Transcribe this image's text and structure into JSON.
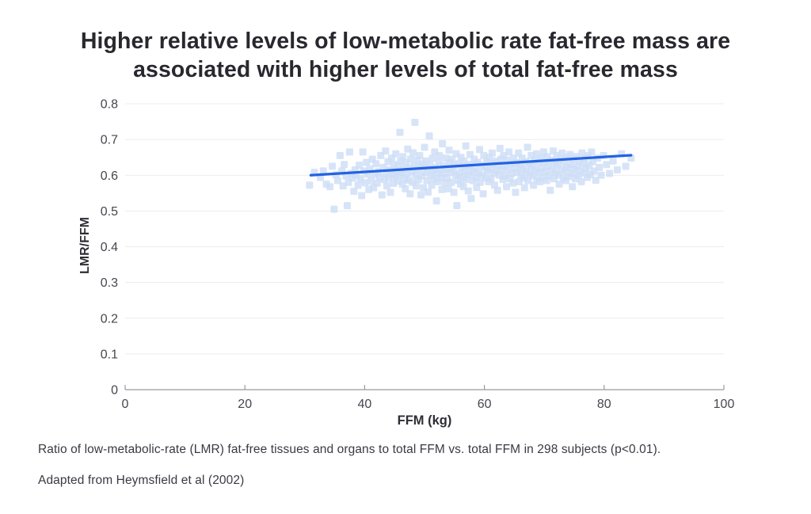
{
  "header": {
    "title_line1": "Higher relative levels of low-metabolic rate fat-free mass are",
    "title_line2": "associated with higher levels of total fat-free mass"
  },
  "footnotes": {
    "line1": "Ratio of low-metabolic-rate (LMR) fat-free tissues and organs to total FFM vs. total FFM in 298 subjects (p<0.01).",
    "line2": "Adapted from Heymsfield et al (2002)"
  },
  "chart_data": {
    "type": "scatter",
    "title": "Higher relative levels of low-metabolic rate fat-free mass are associated with higher levels of total fat-free mass",
    "xlabel": "FFM (kg)",
    "ylabel": "LMR/FFM",
    "xlim": [
      0,
      100
    ],
    "ylim": [
      0,
      0.8
    ],
    "xticks": [
      0,
      20,
      40,
      60,
      80,
      100
    ],
    "xtick_labels": [
      "0",
      "20",
      "40",
      "60",
      "80",
      "100"
    ],
    "yticks": [
      0,
      0.1,
      0.2,
      0.3,
      0.4,
      0.5,
      0.6,
      0.7,
      0.8
    ],
    "ytick_labels": [
      "0",
      "0.1",
      "0.2",
      "0.3",
      "0.4",
      "0.5",
      "0.6",
      "0.7",
      "0.8"
    ],
    "grid": "horizontal-only",
    "legend": "none",
    "subjects": 298,
    "marker": "square",
    "trendline": {
      "x1": 31,
      "y1": 0.6,
      "x2": 84.5,
      "y2": 0.656
    },
    "colors": {
      "point": "#cdddf6",
      "trend": "#2263e3",
      "grid": "#ececec",
      "axis": "#9b9b9b",
      "tick_text": "#47464f"
    },
    "points": [
      [
        30.8,
        0.572
      ],
      [
        31.6,
        0.608
      ],
      [
        32.6,
        0.594
      ],
      [
        33.1,
        0.612
      ],
      [
        33.6,
        0.575
      ],
      [
        34.2,
        0.568
      ],
      [
        34.6,
        0.625
      ],
      [
        34.9,
        0.505
      ],
      [
        35.2,
        0.601
      ],
      [
        35.5,
        0.585
      ],
      [
        35.9,
        0.655
      ],
      [
        36.2,
        0.612
      ],
      [
        36.4,
        0.57
      ],
      [
        36.6,
        0.63
      ],
      [
        36.9,
        0.598
      ],
      [
        37.1,
        0.515
      ],
      [
        37.3,
        0.58
      ],
      [
        37.5,
        0.665
      ],
      [
        37.8,
        0.605
      ],
      [
        38.0,
        0.592
      ],
      [
        38.2,
        0.555
      ],
      [
        38.4,
        0.615
      ],
      [
        38.6,
        0.6
      ],
      [
        38.9,
        0.572
      ],
      [
        39.1,
        0.628
      ],
      [
        39.3,
        0.59
      ],
      [
        39.5,
        0.543
      ],
      [
        39.7,
        0.665
      ],
      [
        39.9,
        0.612
      ],
      [
        40.1,
        0.579
      ],
      [
        40.3,
        0.636
      ],
      [
        40.5,
        0.603
      ],
      [
        40.7,
        0.56
      ],
      [
        40.9,
        0.618
      ],
      [
        41.1,
        0.585
      ],
      [
        41.3,
        0.645
      ],
      [
        41.5,
        0.565
      ],
      [
        41.7,
        0.602
      ],
      [
        41.9,
        0.632
      ],
      [
        42.1,
        0.578
      ],
      [
        42.3,
        0.61
      ],
      [
        42.5,
        0.594
      ],
      [
        42.7,
        0.655
      ],
      [
        42.9,
        0.545
      ],
      [
        43.1,
        0.622
      ],
      [
        43.3,
        0.588
      ],
      [
        43.5,
        0.668
      ],
      [
        43.6,
        0.605
      ],
      [
        43.7,
        0.57
      ],
      [
        43.9,
        0.638
      ],
      [
        44.0,
        0.592
      ],
      [
        44.2,
        0.615
      ],
      [
        44.3,
        0.552
      ],
      [
        44.5,
        0.648
      ],
      [
        44.6,
        0.602
      ],
      [
        44.8,
        0.577
      ],
      [
        44.9,
        0.63
      ],
      [
        45.0,
        0.596
      ],
      [
        45.2,
        0.66
      ],
      [
        45.3,
        0.612
      ],
      [
        45.5,
        0.583
      ],
      [
        45.6,
        0.625
      ],
      [
        45.8,
        0.599
      ],
      [
        45.9,
        0.72
      ],
      [
        46.0,
        0.64
      ],
      [
        46.1,
        0.607
      ],
      [
        46.3,
        0.575
      ],
      [
        46.4,
        0.652
      ],
      [
        46.5,
        0.618
      ],
      [
        46.7,
        0.59
      ],
      [
        46.8,
        0.562
      ],
      [
        46.9,
        0.635
      ],
      [
        47.1,
        0.603
      ],
      [
        47.2,
        0.673
      ],
      [
        47.3,
        0.586
      ],
      [
        47.5,
        0.621
      ],
      [
        47.6,
        0.548
      ],
      [
        47.7,
        0.645
      ],
      [
        47.9,
        0.61
      ],
      [
        48.0,
        0.58
      ],
      [
        48.1,
        0.663
      ],
      [
        48.3,
        0.627
      ],
      [
        48.4,
        0.748
      ],
      [
        48.5,
        0.6
      ],
      [
        48.6,
        0.57
      ],
      [
        48.8,
        0.642
      ],
      [
        48.9,
        0.616
      ],
      [
        49.0,
        0.588
      ],
      [
        49.2,
        0.655
      ],
      [
        49.3,
        0.624
      ],
      [
        49.4,
        0.545
      ],
      [
        49.6,
        0.598
      ],
      [
        49.7,
        0.632
      ],
      [
        49.8,
        0.565
      ],
      [
        50.0,
        0.678
      ],
      [
        50.1,
        0.608
      ],
      [
        50.2,
        0.64
      ],
      [
        50.4,
        0.585
      ],
      [
        50.5,
        0.619
      ],
      [
        50.6,
        0.553
      ],
      [
        50.8,
        0.71
      ],
      [
        50.9,
        0.63
      ],
      [
        51.0,
        0.6
      ],
      [
        51.2,
        0.572
      ],
      [
        51.3,
        0.647
      ],
      [
        51.4,
        0.612
      ],
      [
        51.6,
        0.59
      ],
      [
        51.7,
        0.665
      ],
      [
        51.8,
        0.622
      ],
      [
        52.0,
        0.528
      ],
      [
        52.1,
        0.604
      ],
      [
        52.2,
        0.582
      ],
      [
        52.4,
        0.638
      ],
      [
        52.5,
        0.655
      ],
      [
        52.6,
        0.615
      ],
      [
        52.8,
        0.594
      ],
      [
        52.9,
        0.56
      ],
      [
        53.0,
        0.688
      ],
      [
        53.2,
        0.627
      ],
      [
        53.3,
        0.605
      ],
      [
        53.4,
        0.578
      ],
      [
        53.6,
        0.648
      ],
      [
        53.7,
        0.618
      ],
      [
        53.8,
        0.592
      ],
      [
        54.0,
        0.562
      ],
      [
        54.1,
        0.67
      ],
      [
        54.2,
        0.635
      ],
      [
        54.4,
        0.608
      ],
      [
        54.5,
        0.58
      ],
      [
        54.6,
        0.645
      ],
      [
        54.8,
        0.616
      ],
      [
        54.9,
        0.552
      ],
      [
        55.0,
        0.628
      ],
      [
        55.2,
        0.6
      ],
      [
        55.3,
        0.66
      ],
      [
        55.4,
        0.515
      ],
      [
        55.6,
        0.586
      ],
      [
        55.7,
        0.632
      ],
      [
        55.8,
        0.605
      ],
      [
        56.0,
        0.575
      ],
      [
        56.1,
        0.65
      ],
      [
        56.2,
        0.622
      ],
      [
        56.4,
        0.595
      ],
      [
        56.5,
        0.568
      ],
      [
        56.6,
        0.64
      ],
      [
        56.8,
        0.612
      ],
      [
        56.9,
        0.682
      ],
      [
        57.0,
        0.588
      ],
      [
        57.2,
        0.625
      ],
      [
        57.3,
        0.556
      ],
      [
        57.4,
        0.602
      ],
      [
        57.6,
        0.658
      ],
      [
        57.7,
        0.63
      ],
      [
        57.8,
        0.535
      ],
      [
        58.0,
        0.61
      ],
      [
        58.1,
        0.585
      ],
      [
        58.3,
        0.645
      ],
      [
        58.4,
        0.618
      ],
      [
        58.6,
        0.594
      ],
      [
        58.7,
        0.566
      ],
      [
        58.9,
        0.636
      ],
      [
        59.0,
        0.608
      ],
      [
        59.2,
        0.672
      ],
      [
        59.3,
        0.58
      ],
      [
        59.5,
        0.628
      ],
      [
        59.6,
        0.6
      ],
      [
        59.8,
        0.548
      ],
      [
        59.9,
        0.655
      ],
      [
        60.1,
        0.622
      ],
      [
        60.2,
        0.592
      ],
      [
        60.4,
        0.638
      ],
      [
        60.5,
        0.612
      ],
      [
        60.7,
        0.582
      ],
      [
        60.8,
        0.65
      ],
      [
        61.0,
        0.618
      ],
      [
        61.1,
        0.59
      ],
      [
        61.3,
        0.662
      ],
      [
        61.4,
        0.632
      ],
      [
        61.6,
        0.605
      ],
      [
        61.7,
        0.572
      ],
      [
        61.9,
        0.64
      ],
      [
        62.0,
        0.613
      ],
      [
        62.2,
        0.558
      ],
      [
        62.3,
        0.628
      ],
      [
        62.5,
        0.6
      ],
      [
        62.6,
        0.675
      ],
      [
        62.8,
        0.645
      ],
      [
        62.9,
        0.615
      ],
      [
        63.1,
        0.588
      ],
      [
        63.2,
        0.655
      ],
      [
        63.4,
        0.625
      ],
      [
        63.5,
        0.598
      ],
      [
        63.7,
        0.568
      ],
      [
        63.8,
        0.642
      ],
      [
        64.0,
        0.616
      ],
      [
        64.1,
        0.665
      ],
      [
        64.3,
        0.59
      ],
      [
        64.4,
        0.632
      ],
      [
        64.6,
        0.605
      ],
      [
        64.8,
        0.578
      ],
      [
        64.9,
        0.648
      ],
      [
        65.1,
        0.62
      ],
      [
        65.2,
        0.552
      ],
      [
        65.4,
        0.635
      ],
      [
        65.5,
        0.608
      ],
      [
        65.7,
        0.662
      ],
      [
        65.8,
        0.582
      ],
      [
        66.0,
        0.628
      ],
      [
        66.1,
        0.6
      ],
      [
        66.3,
        0.648
      ],
      [
        66.4,
        0.618
      ],
      [
        66.6,
        0.592
      ],
      [
        66.7,
        0.565
      ],
      [
        66.9,
        0.638
      ],
      [
        67.0,
        0.612
      ],
      [
        67.2,
        0.678
      ],
      [
        67.3,
        0.585
      ],
      [
        67.5,
        0.632
      ],
      [
        67.6,
        0.605
      ],
      [
        67.8,
        0.655
      ],
      [
        67.9,
        0.625
      ],
      [
        68.1,
        0.598
      ],
      [
        68.2,
        0.572
      ],
      [
        68.4,
        0.642
      ],
      [
        68.5,
        0.615
      ],
      [
        68.7,
        0.66
      ],
      [
        68.8,
        0.588
      ],
      [
        69.0,
        0.635
      ],
      [
        69.1,
        0.608
      ],
      [
        69.3,
        0.582
      ],
      [
        69.5,
        0.648
      ],
      [
        69.6,
        0.62
      ],
      [
        69.8,
        0.594
      ],
      [
        69.9,
        0.665
      ],
      [
        70.1,
        0.638
      ],
      [
        70.2,
        0.61
      ],
      [
        70.4,
        0.585
      ],
      [
        70.5,
        0.652
      ],
      [
        70.7,
        0.625
      ],
      [
        70.8,
        0.598
      ],
      [
        71.0,
        0.558
      ],
      [
        71.2,
        0.642
      ],
      [
        71.3,
        0.615
      ],
      [
        71.5,
        0.668
      ],
      [
        71.6,
        0.59
      ],
      [
        71.8,
        0.635
      ],
      [
        71.9,
        0.608
      ],
      [
        72.1,
        0.655
      ],
      [
        72.2,
        0.628
      ],
      [
        72.4,
        0.6
      ],
      [
        72.5,
        0.575
      ],
      [
        72.7,
        0.645
      ],
      [
        72.9,
        0.618
      ],
      [
        73.0,
        0.662
      ],
      [
        73.2,
        0.592
      ],
      [
        73.3,
        0.638
      ],
      [
        73.5,
        0.612
      ],
      [
        73.6,
        0.585
      ],
      [
        73.8,
        0.65
      ],
      [
        73.9,
        0.622
      ],
      [
        74.1,
        0.596
      ],
      [
        74.3,
        0.658
      ],
      [
        74.4,
        0.63
      ],
      [
        74.6,
        0.605
      ],
      [
        74.7,
        0.568
      ],
      [
        74.9,
        0.645
      ],
      [
        75.0,
        0.618
      ],
      [
        75.2,
        0.59
      ],
      [
        75.4,
        0.652
      ],
      [
        75.5,
        0.625
      ],
      [
        75.7,
        0.6
      ],
      [
        75.9,
        0.64
      ],
      [
        76.0,
        0.612
      ],
      [
        76.2,
        0.582
      ],
      [
        76.3,
        0.662
      ],
      [
        76.5,
        0.632
      ],
      [
        76.7,
        0.606
      ],
      [
        76.8,
        0.648
      ],
      [
        77.0,
        0.62
      ],
      [
        77.2,
        0.594
      ],
      [
        77.3,
        0.655
      ],
      [
        77.5,
        0.628
      ],
      [
        77.7,
        0.602
      ],
      [
        77.9,
        0.665
      ],
      [
        78.1,
        0.638
      ],
      [
        78.3,
        0.612
      ],
      [
        78.6,
        0.586
      ],
      [
        78.9,
        0.648
      ],
      [
        79.2,
        0.622
      ],
      [
        79.5,
        0.6
      ],
      [
        79.9,
        0.655
      ],
      [
        80.4,
        0.63
      ],
      [
        80.9,
        0.605
      ],
      [
        81.5,
        0.64
      ],
      [
        82.2,
        0.615
      ],
      [
        82.9,
        0.66
      ],
      [
        83.6,
        0.625
      ],
      [
        84.5,
        0.648
      ]
    ]
  }
}
